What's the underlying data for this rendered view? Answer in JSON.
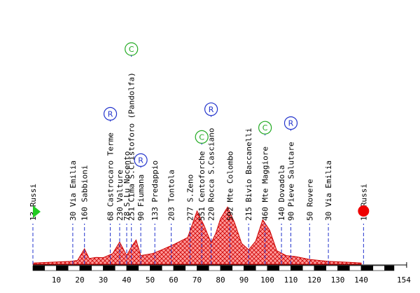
{
  "chart_data": {
    "type": "area",
    "title": "",
    "xlabel": "",
    "ylabel": "",
    "xlim": [
      0,
      154
    ],
    "x_ticks": [
      10,
      20,
      30,
      40,
      50,
      60,
      70,
      80,
      90,
      100,
      110,
      120,
      130,
      140,
      154
    ],
    "grid": false,
    "profile": [
      {
        "x": 0,
        "y": 13
      },
      {
        "x": 16,
        "y": 30
      },
      {
        "x": 19,
        "y": 40
      },
      {
        "x": 22,
        "y": 160
      },
      {
        "x": 24,
        "y": 60
      },
      {
        "x": 27,
        "y": 70
      },
      {
        "x": 30,
        "y": 68
      },
      {
        "x": 34,
        "y": 110
      },
      {
        "x": 37,
        "y": 230
      },
      {
        "x": 40,
        "y": 90
      },
      {
        "x": 42,
        "y": 180
      },
      {
        "x": 44,
        "y": 251
      },
      {
        "x": 46,
        "y": 90
      },
      {
        "x": 51,
        "y": 110
      },
      {
        "x": 55,
        "y": 150
      },
      {
        "x": 60,
        "y": 203
      },
      {
        "x": 66,
        "y": 277
      },
      {
        "x": 70,
        "y": 551
      },
      {
        "x": 73,
        "y": 400
      },
      {
        "x": 76,
        "y": 220
      },
      {
        "x": 78,
        "y": 320
      },
      {
        "x": 80,
        "y": 470
      },
      {
        "x": 83,
        "y": 592
      },
      {
        "x": 86,
        "y": 430
      },
      {
        "x": 89,
        "y": 215
      },
      {
        "x": 92,
        "y": 150
      },
      {
        "x": 95,
        "y": 240
      },
      {
        "x": 98,
        "y": 460
      },
      {
        "x": 101,
        "y": 350
      },
      {
        "x": 104,
        "y": 140
      },
      {
        "x": 108,
        "y": 90
      },
      {
        "x": 112,
        "y": 80
      },
      {
        "x": 118,
        "y": 50
      },
      {
        "x": 126,
        "y": 30
      },
      {
        "x": 135,
        "y": 20
      },
      {
        "x": 140,
        "y": 13
      }
    ],
    "locations": [
      {
        "km": 0,
        "label": "13  Russi",
        "start": true
      },
      {
        "km": 17,
        "label": "30  Via  Emilia"
      },
      {
        "km": 22,
        "label": "160  Sabbioni"
      },
      {
        "km": 33,
        "label": "68  Castrocaro  Terme",
        "badges": [
          "R"
        ]
      },
      {
        "km": 37,
        "label": "230  Valture"
      },
      {
        "km": 40,
        "label": "78  S.Lu  Nocento"
      },
      {
        "km": 42,
        "label": "251  Cima  S.Cristoforo  (Pandolfa)",
        "badges": [
          "C"
        ]
      },
      {
        "km": 46,
        "label": "90  Fiumana",
        "badges": [
          "R"
        ]
      },
      {
        "km": 52,
        "label": "133  Predappio"
      },
      {
        "km": 59,
        "label": "203  Tontola"
      },
      {
        "km": 67,
        "label": "277  S.Zeno"
      },
      {
        "km": 72,
        "label": "551  Centoforche",
        "badges": [
          "C"
        ]
      },
      {
        "km": 76,
        "label": "220  Rocca  S.Casciano",
        "badges": [
          "R"
        ]
      },
      {
        "km": 84,
        "label": "592  Mte  Colombo"
      },
      {
        "km": 92,
        "label": "215  Bivio  Baccanelli"
      },
      {
        "km": 99,
        "label": "460  Mte  Maggiore",
        "badges": [
          "C"
        ]
      },
      {
        "km": 106,
        "label": "140  Dovadola"
      },
      {
        "km": 110,
        "label": "90  Pieve  Salutare",
        "badges": [
          "R"
        ]
      },
      {
        "km": 118,
        "label": "50  Rovere"
      },
      {
        "km": 126,
        "label": "30  Via  Emilia"
      },
      {
        "km": 141,
        "label": "13  Russi",
        "finish": true
      }
    ]
  },
  "colors": {
    "profile_fill": "#ff9999",
    "profile_hatch": "#cc0000",
    "profile_outline": "#cc0000",
    "marker_line": "#2233cc",
    "start_flag": "#22cc22",
    "finish_dot": "#ee0000",
    "badge_R": "#2233cc",
    "badge_C": "#22aa22",
    "label_text": "#000000",
    "scale_bar": "#000000"
  },
  "badge_icons": {
    "R": "R",
    "C": "C"
  }
}
